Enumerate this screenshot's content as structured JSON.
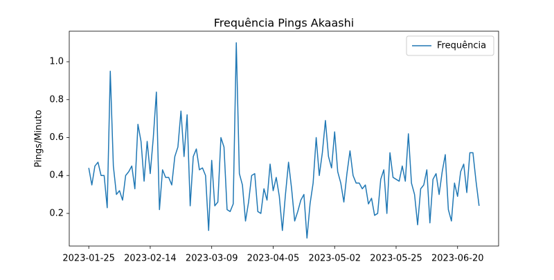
{
  "chart_data": {
    "type": "line",
    "title": "Frequência Pings Akaashi",
    "ylabel": "Pings/Minuto",
    "categories": [
      "2023-01-25",
      null,
      null,
      null,
      null,
      null,
      null,
      null,
      null,
      null,
      null,
      null,
      null,
      null,
      null,
      null,
      null,
      null,
      null,
      null,
      "2023-02-14",
      null,
      null,
      null,
      null,
      null,
      null,
      null,
      null,
      null,
      null,
      null,
      null,
      null,
      null,
      null,
      null,
      null,
      null,
      null,
      "2023-03-09",
      null,
      null,
      null,
      null,
      null,
      null,
      null,
      null,
      null,
      null,
      null,
      null,
      null,
      null,
      null,
      null,
      null,
      null,
      null,
      "2023-04-05",
      null,
      null,
      null,
      null,
      null,
      null,
      null,
      null,
      null,
      null,
      null,
      null,
      null,
      null,
      null,
      null,
      null,
      null,
      null,
      "2023-05-02",
      null,
      null,
      null,
      null,
      null,
      null,
      null,
      null,
      null,
      null,
      null,
      null,
      null,
      null,
      null,
      null,
      null,
      null,
      null,
      "2023-05-25",
      null,
      null,
      null,
      null,
      null,
      null,
      null,
      null,
      null,
      null,
      null,
      null,
      null,
      null,
      null,
      null,
      null,
      null,
      null,
      "2023-06-20",
      null,
      null,
      null,
      null,
      null,
      null,
      null
    ],
    "series": [
      {
        "name": "Frequência",
        "color": "#1f77b4",
        "values": [
          0.44,
          0.35,
          0.45,
          0.47,
          0.4,
          0.4,
          0.23,
          0.95,
          0.45,
          0.3,
          0.32,
          0.27,
          0.4,
          0.42,
          0.45,
          0.33,
          0.67,
          0.58,
          0.37,
          0.58,
          0.41,
          0.6,
          0.84,
          0.22,
          0.43,
          0.39,
          0.39,
          0.35,
          0.5,
          0.55,
          0.74,
          0.5,
          0.72,
          0.24,
          0.5,
          0.54,
          0.43,
          0.44,
          0.4,
          0.11,
          0.48,
          0.24,
          0.26,
          0.6,
          0.55,
          0.22,
          0.21,
          0.25,
          1.1,
          0.41,
          0.35,
          0.16,
          0.26,
          0.4,
          0.41,
          0.21,
          0.2,
          0.33,
          0.27,
          0.46,
          0.32,
          0.39,
          0.29,
          0.11,
          0.3,
          0.47,
          0.33,
          0.16,
          0.21,
          0.27,
          0.3,
          0.07,
          0.25,
          0.36,
          0.6,
          0.4,
          0.52,
          0.69,
          0.5,
          0.44,
          0.63,
          0.42,
          0.36,
          0.26,
          0.41,
          0.53,
          0.4,
          0.36,
          0.36,
          0.33,
          0.35,
          0.25,
          0.28,
          0.19,
          0.2,
          0.38,
          0.43,
          0.2,
          0.52,
          0.39,
          0.38,
          0.37,
          0.45,
          0.37,
          0.62,
          0.36,
          0.3,
          0.14,
          0.33,
          0.35,
          0.43,
          0.15,
          0.38,
          0.41,
          0.3,
          0.42,
          0.51,
          0.22,
          0.16,
          0.36,
          0.29,
          0.42,
          0.46,
          0.31,
          0.52,
          0.52,
          0.37,
          0.24
        ]
      }
    ],
    "xlim": [
      -6.35,
      133.35
    ],
    "ylim": [
      0.028,
      1.161
    ],
    "yticks": [
      0.2,
      0.4,
      0.6,
      0.8,
      {
        "value": 1,
        "label": "1.0"
      }
    ],
    "legend": "upper right",
    "grid": false
  }
}
